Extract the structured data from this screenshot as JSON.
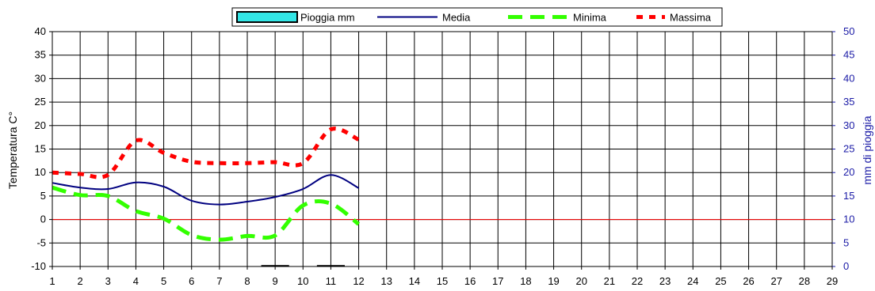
{
  "chart_data": {
    "type": "line",
    "title": "",
    "ylabel": "Temperatura C°",
    "y2label": "mm di pioggia",
    "ylim": [
      -10,
      40
    ],
    "y2lim": [
      0,
      50
    ],
    "yticks": [
      "-10",
      "-5",
      "0",
      "5",
      "10",
      "15",
      "20",
      "25",
      "30",
      "35",
      "40"
    ],
    "y2ticks": [
      "0",
      "5",
      "10",
      "15",
      "20",
      "25",
      "30",
      "35",
      "40",
      "45",
      "50"
    ],
    "x_categories": [
      "1",
      "2",
      "3",
      "4",
      "5",
      "6",
      "7",
      "8",
      "9",
      "10",
      "11",
      "12",
      "13",
      "14",
      "15",
      "16",
      "17",
      "18",
      "19",
      "20",
      "21",
      "22",
      "23",
      "24",
      "25",
      "26",
      "27",
      "28",
      "29"
    ],
    "grid": true,
    "legend": {
      "placement": "top",
      "items": [
        {
          "name": "Pioggia mm",
          "kind": "bar"
        },
        {
          "name": "Media",
          "kind": "line"
        },
        {
          "name": "Minima",
          "kind": "dashed"
        },
        {
          "name": "Massima",
          "kind": "dotted"
        }
      ]
    },
    "series": [
      {
        "name": "Media",
        "color": "#000080",
        "axis": "left",
        "style": "solid",
        "x": [
          1,
          2,
          3,
          4,
          5,
          6,
          7,
          8,
          9,
          10,
          11,
          12
        ],
        "values": [
          7.8,
          6.8,
          6.5,
          7.9,
          7.0,
          4.0,
          3.2,
          3.8,
          4.8,
          6.5,
          9.5,
          6.7
        ]
      },
      {
        "name": "Minima",
        "color": "#33ff00",
        "axis": "left",
        "style": "dashed",
        "x": [
          1,
          2,
          3,
          4,
          5,
          6,
          7,
          8,
          9,
          10,
          11,
          12
        ],
        "values": [
          6.8,
          5.2,
          5.0,
          1.8,
          0.2,
          -3.3,
          -4.3,
          -3.5,
          -3.4,
          3.0,
          3.4,
          -1.0
        ]
      },
      {
        "name": "Massima",
        "color": "#ff0000",
        "axis": "left",
        "style": "dotted",
        "x": [
          1,
          2,
          3,
          4,
          5,
          6,
          7,
          8,
          9,
          10,
          11,
          12
        ],
        "values": [
          10.0,
          9.7,
          9.5,
          16.8,
          14.2,
          12.3,
          12.0,
          12.0,
          12.2,
          12.0,
          19.2,
          17.0
        ]
      },
      {
        "name": "Pioggia mm",
        "color": "#000000",
        "axis": "right",
        "style": "bar",
        "x": [
          9,
          11
        ],
        "values": [
          0.3,
          0.3
        ]
      }
    ],
    "reference_line": {
      "y": 0,
      "color": "#ff0000"
    }
  }
}
